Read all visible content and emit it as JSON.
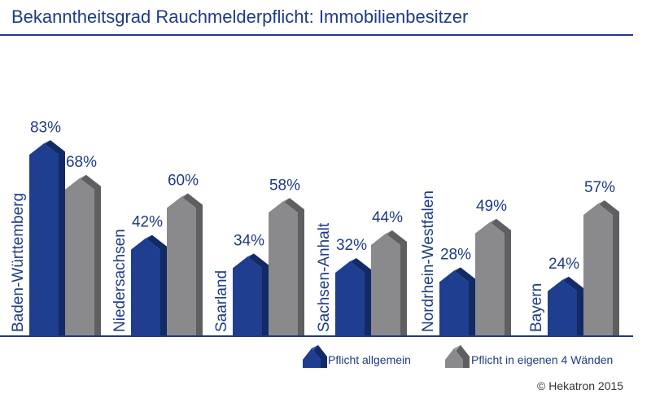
{
  "chart_data": {
    "type": "bar",
    "title": "Bekanntheitsgrad Rauchmelderpflicht: Immobilienbesitzer",
    "categories": [
      "Baden-Württemberg",
      "Niedersachsen",
      "Saarland",
      "Sachsen-Anhalt",
      "Nordrhein-Westfalen",
      "Bayern"
    ],
    "series": [
      {
        "name": "Pflicht allgemein",
        "values": [
          83,
          42,
          34,
          32,
          28,
          24
        ]
      },
      {
        "name": "Pflicht in eigenen 4 Wänden",
        "values": [
          68,
          60,
          58,
          44,
          49,
          57
        ]
      }
    ],
    "value_suffix": "%",
    "ylim": [
      0,
      100
    ],
    "grid": false,
    "legend": "bottom-right",
    "colors": {
      "series_0": "#1f3e8f",
      "series_0_side": "#122a66",
      "series_0_roof": "#2d55b0",
      "series_1": "#8a8a8c",
      "series_1_side": "#5f5f61",
      "series_1_roof": "#a3a3a5",
      "text": "#1f3b86",
      "rule": "#1f3b86"
    },
    "copyright": "© Hekatron 2015"
  }
}
